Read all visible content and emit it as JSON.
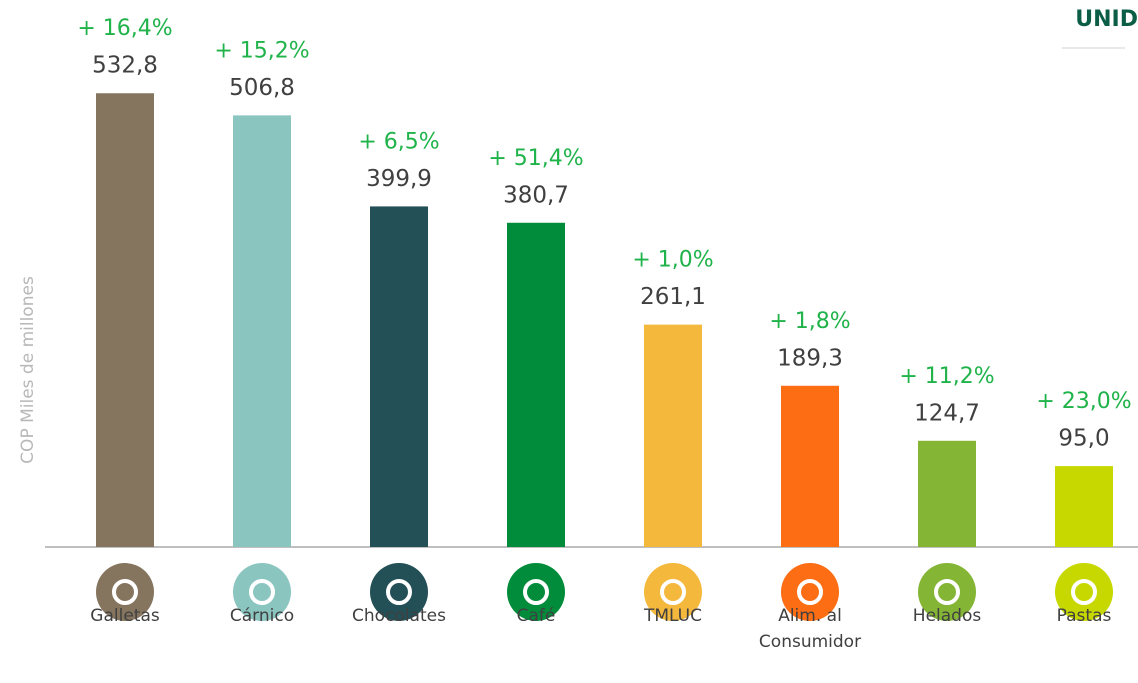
{
  "chart_data": {
    "type": "bar",
    "title": "UNID",
    "y_label": "COP Miles de millones",
    "categories": [
      "Galletas",
      "Cárnico",
      "Chocolates",
      "Café",
      "TMLUC",
      "Alim. al Consumidor",
      "Helados",
      "Pastas"
    ],
    "values": [
      532.8,
      506.8,
      399.9,
      380.7,
      261.1,
      189.3,
      124.7,
      95.0
    ],
    "value_labels": [
      "532,8",
      "506,8",
      "399,9",
      "380,7",
      "261,1",
      "189,3",
      "124,7",
      "95,0"
    ],
    "annotations": [
      "+ 16,4%",
      "+ 15,2%",
      "+ 6,5%",
      "+ 51,4%",
      "+ 1,0%",
      "+ 1,8%",
      "+ 11,2%",
      "+ 23,0%"
    ],
    "colors": [
      "#85755e",
      "#8bc5c0",
      "#234f56",
      "#008c3a",
      "#f4b93c",
      "#fd6d13",
      "#84b535",
      "#c7d800"
    ],
    "ylim": [
      0,
      600
    ]
  }
}
